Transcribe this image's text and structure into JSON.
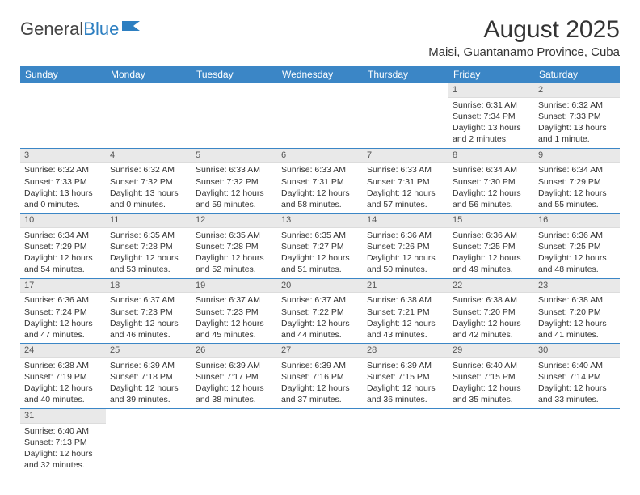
{
  "logo": {
    "text1": "General",
    "text2": "Blue"
  },
  "title": "August 2025",
  "location": "Maisi, Guantanamo Province, Cuba",
  "headers": [
    "Sunday",
    "Monday",
    "Tuesday",
    "Wednesday",
    "Thursday",
    "Friday",
    "Saturday"
  ],
  "colors": {
    "header_bg": "#3b86c6",
    "header_fg": "#ffffff",
    "daynum_bg": "#e9e9e9",
    "border": "#3b86c6"
  },
  "weeks": [
    [
      null,
      null,
      null,
      null,
      null,
      {
        "n": "1",
        "sunrise": "6:31 AM",
        "sunset": "7:34 PM",
        "daylight": "13 hours and 2 minutes."
      },
      {
        "n": "2",
        "sunrise": "6:32 AM",
        "sunset": "7:33 PM",
        "daylight": "13 hours and 1 minute."
      }
    ],
    [
      {
        "n": "3",
        "sunrise": "6:32 AM",
        "sunset": "7:33 PM",
        "daylight": "13 hours and 0 minutes."
      },
      {
        "n": "4",
        "sunrise": "6:32 AM",
        "sunset": "7:32 PM",
        "daylight": "13 hours and 0 minutes."
      },
      {
        "n": "5",
        "sunrise": "6:33 AM",
        "sunset": "7:32 PM",
        "daylight": "12 hours and 59 minutes."
      },
      {
        "n": "6",
        "sunrise": "6:33 AM",
        "sunset": "7:31 PM",
        "daylight": "12 hours and 58 minutes."
      },
      {
        "n": "7",
        "sunrise": "6:33 AM",
        "sunset": "7:31 PM",
        "daylight": "12 hours and 57 minutes."
      },
      {
        "n": "8",
        "sunrise": "6:34 AM",
        "sunset": "7:30 PM",
        "daylight": "12 hours and 56 minutes."
      },
      {
        "n": "9",
        "sunrise": "6:34 AM",
        "sunset": "7:29 PM",
        "daylight": "12 hours and 55 minutes."
      }
    ],
    [
      {
        "n": "10",
        "sunrise": "6:34 AM",
        "sunset": "7:29 PM",
        "daylight": "12 hours and 54 minutes."
      },
      {
        "n": "11",
        "sunrise": "6:35 AM",
        "sunset": "7:28 PM",
        "daylight": "12 hours and 53 minutes."
      },
      {
        "n": "12",
        "sunrise": "6:35 AM",
        "sunset": "7:28 PM",
        "daylight": "12 hours and 52 minutes."
      },
      {
        "n": "13",
        "sunrise": "6:35 AM",
        "sunset": "7:27 PM",
        "daylight": "12 hours and 51 minutes."
      },
      {
        "n": "14",
        "sunrise": "6:36 AM",
        "sunset": "7:26 PM",
        "daylight": "12 hours and 50 minutes."
      },
      {
        "n": "15",
        "sunrise": "6:36 AM",
        "sunset": "7:25 PM",
        "daylight": "12 hours and 49 minutes."
      },
      {
        "n": "16",
        "sunrise": "6:36 AM",
        "sunset": "7:25 PM",
        "daylight": "12 hours and 48 minutes."
      }
    ],
    [
      {
        "n": "17",
        "sunrise": "6:36 AM",
        "sunset": "7:24 PM",
        "daylight": "12 hours and 47 minutes."
      },
      {
        "n": "18",
        "sunrise": "6:37 AM",
        "sunset": "7:23 PM",
        "daylight": "12 hours and 46 minutes."
      },
      {
        "n": "19",
        "sunrise": "6:37 AM",
        "sunset": "7:23 PM",
        "daylight": "12 hours and 45 minutes."
      },
      {
        "n": "20",
        "sunrise": "6:37 AM",
        "sunset": "7:22 PM",
        "daylight": "12 hours and 44 minutes."
      },
      {
        "n": "21",
        "sunrise": "6:38 AM",
        "sunset": "7:21 PM",
        "daylight": "12 hours and 43 minutes."
      },
      {
        "n": "22",
        "sunrise": "6:38 AM",
        "sunset": "7:20 PM",
        "daylight": "12 hours and 42 minutes."
      },
      {
        "n": "23",
        "sunrise": "6:38 AM",
        "sunset": "7:20 PM",
        "daylight": "12 hours and 41 minutes."
      }
    ],
    [
      {
        "n": "24",
        "sunrise": "6:38 AM",
        "sunset": "7:19 PM",
        "daylight": "12 hours and 40 minutes."
      },
      {
        "n": "25",
        "sunrise": "6:39 AM",
        "sunset": "7:18 PM",
        "daylight": "12 hours and 39 minutes."
      },
      {
        "n": "26",
        "sunrise": "6:39 AM",
        "sunset": "7:17 PM",
        "daylight": "12 hours and 38 minutes."
      },
      {
        "n": "27",
        "sunrise": "6:39 AM",
        "sunset": "7:16 PM",
        "daylight": "12 hours and 37 minutes."
      },
      {
        "n": "28",
        "sunrise": "6:39 AM",
        "sunset": "7:15 PM",
        "daylight": "12 hours and 36 minutes."
      },
      {
        "n": "29",
        "sunrise": "6:40 AM",
        "sunset": "7:15 PM",
        "daylight": "12 hours and 35 minutes."
      },
      {
        "n": "30",
        "sunrise": "6:40 AM",
        "sunset": "7:14 PM",
        "daylight": "12 hours and 33 minutes."
      }
    ],
    [
      {
        "n": "31",
        "sunrise": "6:40 AM",
        "sunset": "7:13 PM",
        "daylight": "12 hours and 32 minutes."
      },
      null,
      null,
      null,
      null,
      null,
      null
    ]
  ],
  "labels": {
    "sunrise": "Sunrise:",
    "sunset": "Sunset:",
    "daylight": "Daylight:"
  }
}
